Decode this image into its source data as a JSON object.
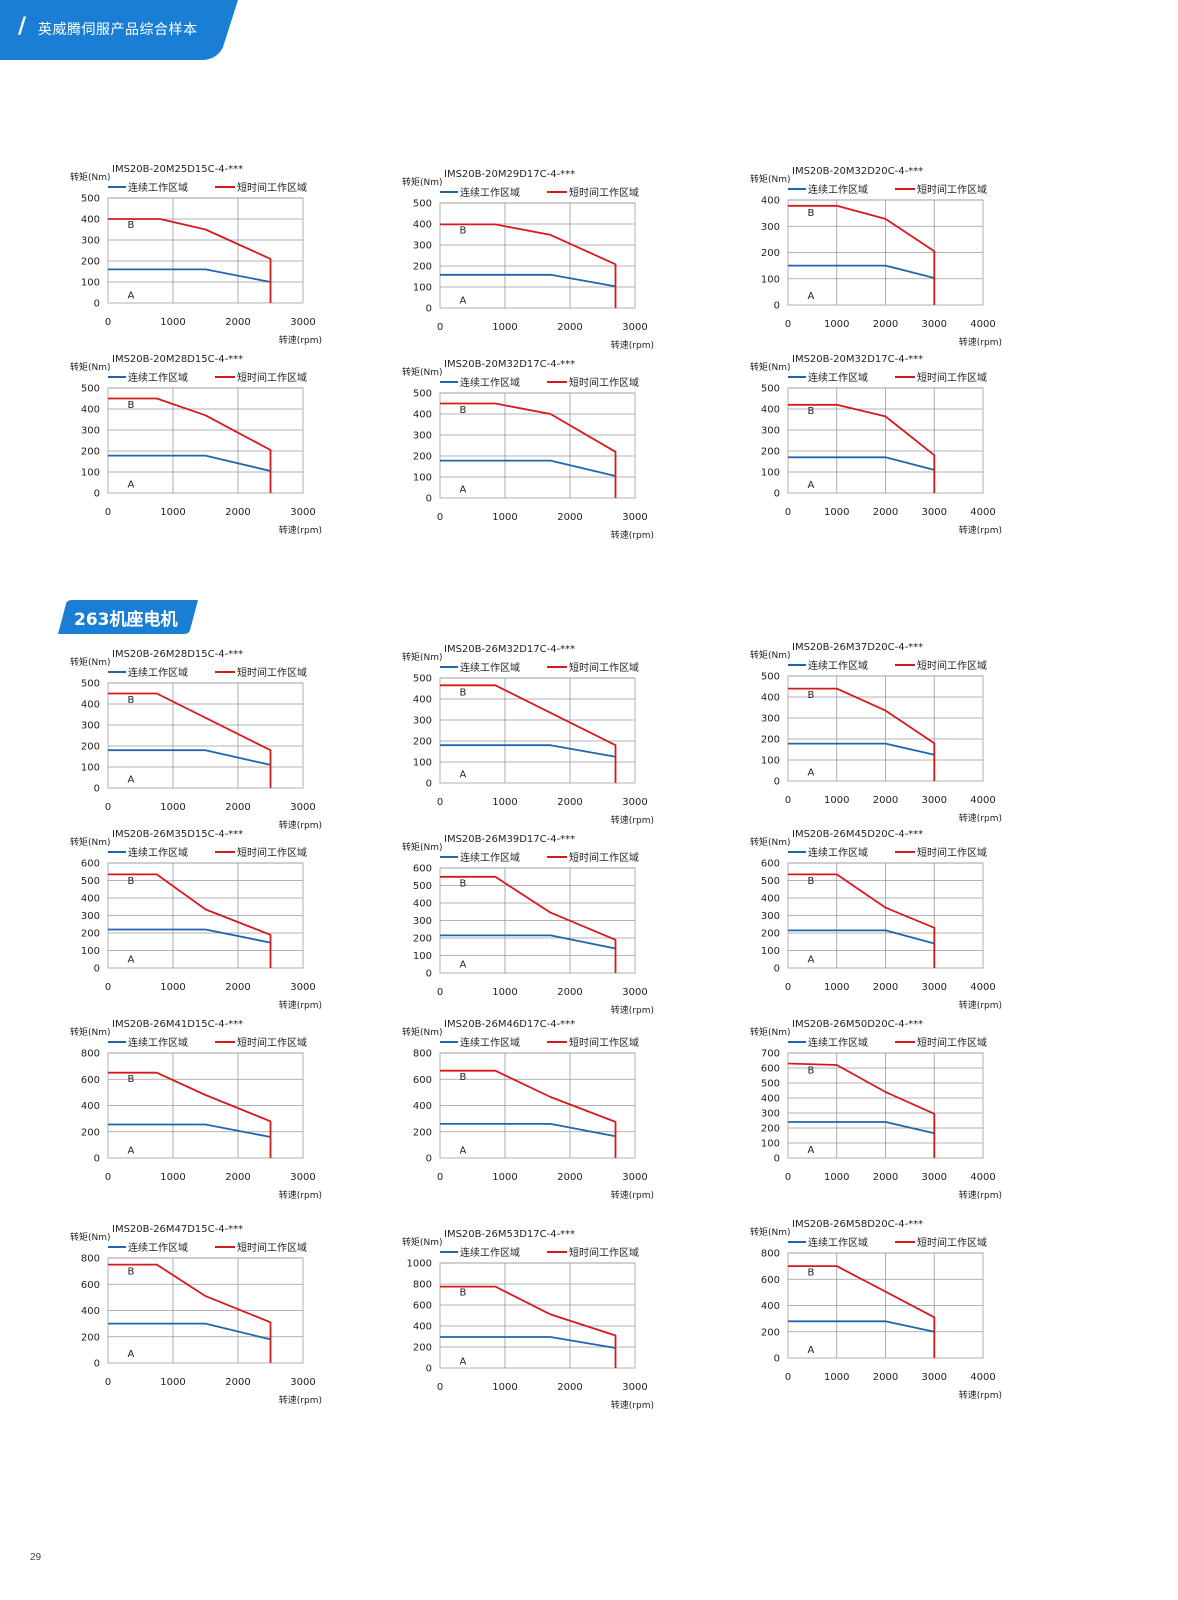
{
  "header": {
    "title": "英威腾伺服产品综合样本",
    "accent_color": "#1a7fd4"
  },
  "section": {
    "label": "263机座电机"
  },
  "page_number": "29",
  "common": {
    "ylabel": "转矩(Nm)",
    "xlabel": "转速(rpm)",
    "legend_continuous": "连续工作区域",
    "legend_short": "短时间工作区域",
    "region_a": "A",
    "region_b": "B",
    "color_continuous": "#2166ac",
    "color_short": "#d7191c"
  },
  "chart_data": [
    {
      "type": "line",
      "title": "IMS20B-20M25D15C-4-***",
      "xlim": [
        0,
        3000
      ],
      "xticks": [
        0,
        1000,
        2000,
        3000
      ],
      "ylim": [
        0,
        500
      ],
      "yticks": [
        0,
        100,
        200,
        300,
        400,
        500
      ],
      "series": [
        {
          "name": "连续工作区域",
          "x": [
            0,
            1500,
            2500
          ],
          "y": [
            160,
            160,
            100
          ]
        },
        {
          "name": "短时间工作区域",
          "x": [
            0,
            800,
            1500,
            2500,
            2500
          ],
          "y": [
            400,
            400,
            350,
            210,
            0
          ]
        }
      ]
    },
    {
      "type": "line",
      "title": "IMS20B-20M29D17C-4-***",
      "xlim": [
        0,
        3000
      ],
      "xticks": [
        0,
        1000,
        2000,
        3000
      ],
      "ylim": [
        0,
        500
      ],
      "yticks": [
        0,
        100,
        200,
        300,
        400,
        500
      ],
      "series": [
        {
          "name": "连续工作区域",
          "x": [
            0,
            1700,
            2700
          ],
          "y": [
            158,
            158,
            103
          ]
        },
        {
          "name": "短时间工作区域",
          "x": [
            0,
            850,
            1700,
            2700,
            2700
          ],
          "y": [
            398,
            398,
            348,
            208,
            0
          ]
        }
      ]
    },
    {
      "type": "line",
      "title": "IMS20B-20M32D20C-4-***",
      "xlim": [
        0,
        4000
      ],
      "xticks": [
        0,
        1000,
        2000,
        3000,
        4000
      ],
      "ylim": [
        0,
        400
      ],
      "yticks": [
        0,
        100,
        200,
        300,
        400
      ],
      "series": [
        {
          "name": "连续工作区域",
          "x": [
            0,
            2000,
            3000
          ],
          "y": [
            150,
            150,
            103
          ]
        },
        {
          "name": "短时间工作区域",
          "x": [
            0,
            1000,
            2000,
            3000,
            3000
          ],
          "y": [
            378,
            378,
            328,
            205,
            0
          ]
        }
      ]
    },
    {
      "type": "line",
      "title": "IMS20B-20M28D15C-4-***",
      "xlim": [
        0,
        3000
      ],
      "xticks": [
        0,
        1000,
        2000,
        3000
      ],
      "ylim": [
        0,
        500
      ],
      "yticks": [
        0,
        100,
        200,
        300,
        400,
        500
      ],
      "series": [
        {
          "name": "连续工作区域",
          "x": [
            0,
            1500,
            2500
          ],
          "y": [
            178,
            178,
            105
          ]
        },
        {
          "name": "短时间工作区域",
          "x": [
            0,
            750,
            1500,
            2500,
            2500
          ],
          "y": [
            450,
            450,
            370,
            205,
            0
          ]
        }
      ]
    },
    {
      "type": "line",
      "title": "IMS20B-20M32D17C-4-***",
      "xlim": [
        0,
        3000
      ],
      "xticks": [
        0,
        1000,
        2000,
        3000
      ],
      "ylim": [
        0,
        500
      ],
      "yticks": [
        0,
        100,
        200,
        300,
        400,
        500
      ],
      "series": [
        {
          "name": "连续工作区域",
          "x": [
            0,
            1700,
            2700
          ],
          "y": [
            178,
            178,
            105
          ]
        },
        {
          "name": "短时间工作区域",
          "x": [
            0,
            850,
            1700,
            2700,
            2700
          ],
          "y": [
            450,
            450,
            400,
            220,
            0
          ]
        }
      ]
    },
    {
      "type": "line",
      "title": "IMS20B-20M32D17C-4-***",
      "xlim": [
        0,
        4000
      ],
      "xticks": [
        0,
        1000,
        2000,
        3000,
        4000
      ],
      "ylim": [
        0,
        500
      ],
      "yticks": [
        0,
        100,
        200,
        300,
        400,
        500
      ],
      "series": [
        {
          "name": "连续工作区域",
          "x": [
            0,
            2000,
            3000
          ],
          "y": [
            170,
            170,
            110
          ]
        },
        {
          "name": "短时间工作区域",
          "x": [
            0,
            1000,
            2000,
            3000,
            3000
          ],
          "y": [
            420,
            420,
            365,
            180,
            0
          ]
        }
      ]
    },
    {
      "type": "line",
      "title": "IMS20B-26M28D15C-4-***",
      "xlim": [
        0,
        3000
      ],
      "xticks": [
        0,
        1000,
        2000,
        3000
      ],
      "ylim": [
        0,
        500
      ],
      "yticks": [
        0,
        100,
        200,
        300,
        400,
        500
      ],
      "series": [
        {
          "name": "连续工作区域",
          "x": [
            0,
            1500,
            2500
          ],
          "y": [
            180,
            180,
            110
          ]
        },
        {
          "name": "短时间工作区域",
          "x": [
            0,
            750,
            2500,
            2500
          ],
          "y": [
            450,
            450,
            180,
            0
          ]
        }
      ]
    },
    {
      "type": "line",
      "title": "IMS20B-26M32D17C-4-***",
      "xlim": [
        0,
        3000
      ],
      "xticks": [
        0,
        1000,
        2000,
        3000
      ],
      "ylim": [
        0,
        500
      ],
      "yticks": [
        0,
        100,
        200,
        300,
        400,
        500
      ],
      "series": [
        {
          "name": "连续工作区域",
          "x": [
            0,
            1700,
            2700
          ],
          "y": [
            180,
            180,
            125
          ]
        },
        {
          "name": "短时间工作区域",
          "x": [
            0,
            850,
            2700,
            2700
          ],
          "y": [
            465,
            465,
            180,
            0
          ]
        }
      ]
    },
    {
      "type": "line",
      "title": "IMS20B-26M37D20C-4-***",
      "xlim": [
        0,
        4000
      ],
      "xticks": [
        0,
        1000,
        2000,
        3000,
        4000
      ],
      "ylim": [
        0,
        500
      ],
      "yticks": [
        0,
        100,
        200,
        300,
        400,
        500
      ],
      "series": [
        {
          "name": "连续工作区域",
          "x": [
            0,
            2000,
            3000
          ],
          "y": [
            178,
            178,
            125
          ]
        },
        {
          "name": "短时间工作区域",
          "x": [
            0,
            1000,
            2000,
            3000,
            3000
          ],
          "y": [
            440,
            440,
            335,
            180,
            0
          ]
        }
      ]
    },
    {
      "type": "line",
      "title": "IMS20B-26M35D15C-4-***",
      "xlim": [
        0,
        3000
      ],
      "xticks": [
        0,
        1000,
        2000,
        3000
      ],
      "ylim": [
        0,
        600
      ],
      "yticks": [
        0,
        100,
        200,
        300,
        400,
        500,
        600
      ],
      "series": [
        {
          "name": "连续工作区域",
          "x": [
            0,
            1500,
            2500
          ],
          "y": [
            220,
            220,
            145
          ]
        },
        {
          "name": "短时间工作区域",
          "x": [
            0,
            750,
            1500,
            2500,
            2500
          ],
          "y": [
            535,
            535,
            335,
            190,
            0
          ]
        }
      ]
    },
    {
      "type": "line",
      "title": "IMS20B-26M39D17C-4-***",
      "xlim": [
        0,
        3000
      ],
      "xticks": [
        0,
        1000,
        2000,
        3000
      ],
      "ylim": [
        0,
        600
      ],
      "yticks": [
        0,
        100,
        200,
        300,
        400,
        500,
        600
      ],
      "series": [
        {
          "name": "连续工作区域",
          "x": [
            0,
            1700,
            2700
          ],
          "y": [
            215,
            215,
            140
          ]
        },
        {
          "name": "短时间工作区域",
          "x": [
            0,
            850,
            1700,
            2700,
            2700
          ],
          "y": [
            550,
            550,
            345,
            190,
            0
          ]
        }
      ]
    },
    {
      "type": "line",
      "title": "IMS20B-26M45D20C-4-***",
      "xlim": [
        0,
        4000
      ],
      "xticks": [
        0,
        1000,
        2000,
        3000,
        4000
      ],
      "ylim": [
        0,
        600
      ],
      "yticks": [
        0,
        100,
        200,
        300,
        400,
        500,
        600
      ],
      "series": [
        {
          "name": "连续工作区域",
          "x": [
            0,
            2000,
            3000
          ],
          "y": [
            215,
            215,
            140
          ]
        },
        {
          "name": "短时间工作区域",
          "x": [
            0,
            1000,
            2000,
            3000,
            3000
          ],
          "y": [
            535,
            535,
            345,
            230,
            0
          ]
        }
      ]
    },
    {
      "type": "line",
      "title": "IMS20B-26M41D15C-4-***",
      "xlim": [
        0,
        3000
      ],
      "xticks": [
        0,
        1000,
        2000,
        3000
      ],
      "ylim": [
        0,
        800
      ],
      "yticks": [
        0,
        200,
        400,
        600,
        800
      ],
      "series": [
        {
          "name": "连续工作区域",
          "x": [
            0,
            1500,
            2500
          ],
          "y": [
            255,
            255,
            160
          ]
        },
        {
          "name": "短时间工作区域",
          "x": [
            0,
            750,
            1500,
            2500,
            2500
          ],
          "y": [
            650,
            650,
            480,
            280,
            0
          ]
        }
      ]
    },
    {
      "type": "line",
      "title": "IMS20B-26M46D17C-4-***",
      "xlim": [
        0,
        3000
      ],
      "xticks": [
        0,
        1000,
        2000,
        3000
      ],
      "ylim": [
        0,
        800
      ],
      "yticks": [
        0,
        200,
        400,
        600,
        800
      ],
      "series": [
        {
          "name": "连续工作区域",
          "x": [
            0,
            1700,
            2700
          ],
          "y": [
            260,
            260,
            165
          ]
        },
        {
          "name": "短时间工作区域",
          "x": [
            0,
            850,
            1700,
            2700,
            2700
          ],
          "y": [
            665,
            665,
            465,
            275,
            0
          ]
        }
      ]
    },
    {
      "type": "line",
      "title": "IMS20B-26M50D20C-4-***",
      "xlim": [
        0,
        4000
      ],
      "xticks": [
        0,
        1000,
        2000,
        3000,
        4000
      ],
      "ylim": [
        0,
        700
      ],
      "yticks": [
        0,
        100,
        200,
        300,
        400,
        500,
        600,
        700
      ],
      "series": [
        {
          "name": "连续工作区域",
          "x": [
            0,
            2000,
            3000
          ],
          "y": [
            240,
            240,
            165
          ]
        },
        {
          "name": "短时间工作区域",
          "x": [
            0,
            1000,
            2000,
            3000,
            3000
          ],
          "y": [
            630,
            620,
            440,
            295,
            0
          ]
        }
      ]
    },
    {
      "type": "line",
      "title": "IMS20B-26M47D15C-4-***",
      "xlim": [
        0,
        3000
      ],
      "xticks": [
        0,
        1000,
        2000,
        3000
      ],
      "ylim": [
        0,
        800
      ],
      "yticks": [
        0,
        200,
        400,
        600,
        800
      ],
      "series": [
        {
          "name": "连续工作区域",
          "x": [
            0,
            1500,
            2500
          ],
          "y": [
            300,
            300,
            180
          ]
        },
        {
          "name": "短时间工作区域",
          "x": [
            0,
            750,
            1500,
            2500,
            2500
          ],
          "y": [
            750,
            750,
            510,
            310,
            0
          ]
        }
      ]
    },
    {
      "type": "line",
      "title": "IMS20B-26M53D17C-4-***",
      "xlim": [
        0,
        3000
      ],
      "xticks": [
        0,
        1000,
        2000,
        3000
      ],
      "ylim": [
        0,
        1000
      ],
      "yticks": [
        0,
        200,
        400,
        600,
        800,
        1000
      ],
      "series": [
        {
          "name": "连续工作区域",
          "x": [
            0,
            1700,
            2700
          ],
          "y": [
            295,
            295,
            190
          ]
        },
        {
          "name": "短时间工作区域",
          "x": [
            0,
            850,
            1700,
            2700,
            2700
          ],
          "y": [
            775,
            775,
            510,
            310,
            0
          ]
        }
      ]
    },
    {
      "type": "line",
      "title": "IMS20B-26M58D20C-4-***",
      "xlim": [
        0,
        4000
      ],
      "xticks": [
        0,
        1000,
        2000,
        3000,
        4000
      ],
      "ylim": [
        0,
        800
      ],
      "yticks": [
        0,
        200,
        400,
        600,
        800
      ],
      "series": [
        {
          "name": "连续工作区域",
          "x": [
            0,
            2000,
            3000
          ],
          "y": [
            280,
            280,
            200
          ]
        },
        {
          "name": "短时间工作区域",
          "x": [
            0,
            1000,
            3000,
            3000
          ],
          "y": [
            700,
            700,
            310,
            0
          ]
        }
      ]
    }
  ]
}
